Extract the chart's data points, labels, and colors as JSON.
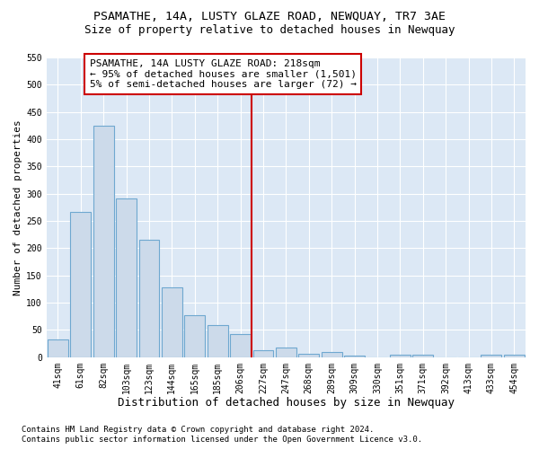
{
  "title": "PSAMATHE, 14A, LUSTY GLAZE ROAD, NEWQUAY, TR7 3AE",
  "subtitle": "Size of property relative to detached houses in Newquay",
  "xlabel": "Distribution of detached houses by size in Newquay",
  "ylabel": "Number of detached properties",
  "categories": [
    "41sqm",
    "61sqm",
    "82sqm",
    "103sqm",
    "123sqm",
    "144sqm",
    "165sqm",
    "185sqm",
    "206sqm",
    "227sqm",
    "247sqm",
    "268sqm",
    "289sqm",
    "309sqm",
    "330sqm",
    "351sqm",
    "371sqm",
    "392sqm",
    "413sqm",
    "433sqm",
    "454sqm"
  ],
  "values": [
    32,
    266,
    425,
    291,
    215,
    128,
    77,
    59,
    42,
    13,
    18,
    6,
    9,
    3,
    0,
    5,
    5,
    0,
    0,
    4,
    4
  ],
  "bar_color": "#ccdaea",
  "bar_edge_color": "#6fa8d0",
  "vline_color": "#cc0000",
  "vline_pos": 8.5,
  "annotation_text": "PSAMATHE, 14A LUSTY GLAZE ROAD: 218sqm\n← 95% of detached houses are smaller (1,501)\n5% of semi-detached houses are larger (72) →",
  "annotation_box_facecolor": "#ffffff",
  "annotation_box_edgecolor": "#cc0000",
  "footnote1": "Contains HM Land Registry data © Crown copyright and database right 2024.",
  "footnote2": "Contains public sector information licensed under the Open Government Licence v3.0.",
  "fig_facecolor": "#ffffff",
  "plot_facecolor": "#dce8f5",
  "ylim": [
    0,
    550
  ],
  "yticks": [
    0,
    50,
    100,
    150,
    200,
    250,
    300,
    350,
    400,
    450,
    500,
    550
  ],
  "title_fontsize": 9.5,
  "subtitle_fontsize": 9,
  "xlabel_fontsize": 9,
  "ylabel_fontsize": 8,
  "tick_fontsize": 7,
  "annotation_fontsize": 8,
  "footnote_fontsize": 6.5
}
